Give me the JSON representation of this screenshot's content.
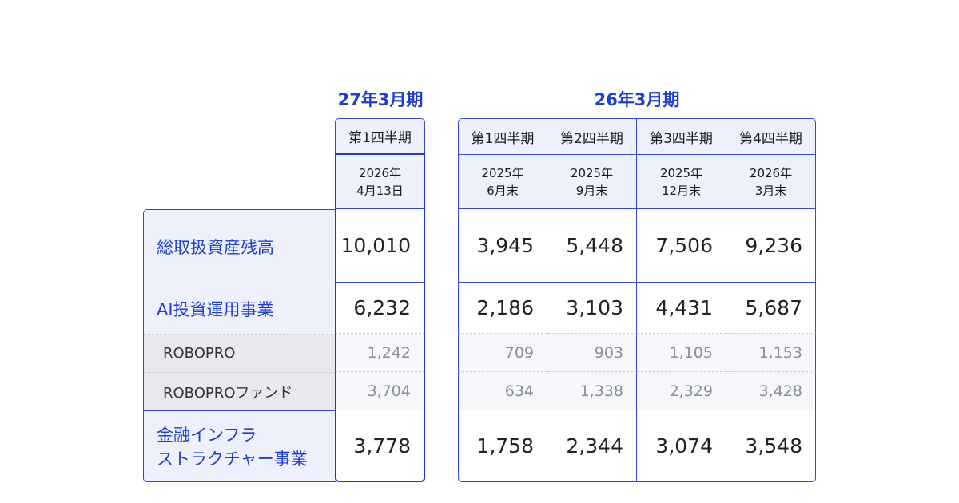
{
  "periods": {
    "current": {
      "title": "27年3月期",
      "columns": [
        {
          "quarter": "第1四半期",
          "date_line1": "2026年",
          "date_line2": "4月13日"
        }
      ]
    },
    "previous": {
      "title": "26年3月期",
      "columns": [
        {
          "quarter": "第1四半期",
          "date_line1": "2025年",
          "date_line2": "6月末"
        },
        {
          "quarter": "第2四半期",
          "date_line1": "2025年",
          "date_line2": "9月末"
        },
        {
          "quarter": "第3四半期",
          "date_line1": "2025年",
          "date_line2": "12月末"
        },
        {
          "quarter": "第4四半期",
          "date_line1": "2026年",
          "date_line2": "3月末"
        }
      ]
    }
  },
  "rows": [
    {
      "label": "総取扱資産残高",
      "current": "10,010",
      "previous": [
        "3,945",
        "5,448",
        "7,506",
        "9,236"
      ]
    },
    {
      "label": "AI投資運用事業",
      "current": "6,232",
      "previous": [
        "2,186",
        "3,103",
        "4,431",
        "5,687"
      ]
    },
    {
      "label": "ROBOPRO",
      "current": "1,242",
      "previous": [
        "709",
        "903",
        "1,105",
        "1,153"
      ]
    },
    {
      "label": "ROBOPROファンド",
      "current": "3,704",
      "previous": [
        "634",
        "1,338",
        "2,329",
        "3,428"
      ]
    },
    {
      "label_line1": "金融インフラ",
      "label_line2": "ストラクチャー事業",
      "current": "3,778",
      "previous": [
        "1,758",
        "2,344",
        "3,074",
        "3,548"
      ]
    }
  ],
  "colors": {
    "accent": "#1f3fd1",
    "border": "#3349d6",
    "header_bg": "#eef1fb",
    "sub_bg": "#e8e9ed",
    "sub_text": "#8a8e99"
  }
}
